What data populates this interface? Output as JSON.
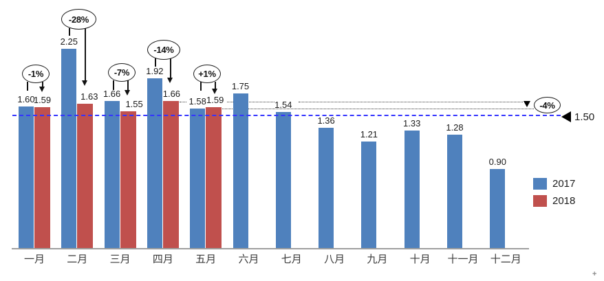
{
  "chart_data": {
    "type": "bar",
    "title": "",
    "categories": [
      "一月",
      "二月",
      "三月",
      "四月",
      "五月",
      "六月",
      "七月",
      "八月",
      "九月",
      "十月",
      "十一月",
      "十二月"
    ],
    "series": [
      {
        "name": "2017",
        "color": "#4F81BD",
        "values": [
          1.6,
          2.25,
          1.66,
          1.92,
          1.58,
          1.75,
          1.54,
          1.36,
          1.21,
          1.33,
          1.28,
          0.9
        ]
      },
      {
        "name": "2018",
        "color": "#C0504D",
        "values": [
          1.59,
          1.63,
          1.55,
          1.66,
          1.59,
          null,
          null,
          null,
          null,
          null,
          null,
          null
        ]
      }
    ],
    "ylim": [
      0,
      2.4
    ],
    "grid": false,
    "legend_position": "right",
    "value_labels_shown": true,
    "reference_line": {
      "value": 1.5,
      "label": "1.50",
      "color": "#3333FF",
      "style": "dashed"
    },
    "annotations": [
      {
        "category": "一月",
        "label": "-1%"
      },
      {
        "category": "二月",
        "label": "-28%"
      },
      {
        "category": "三月",
        "label": "-7%"
      },
      {
        "category": "四月",
        "label": "-14%"
      },
      {
        "category": "五月",
        "label": "+1%"
      }
    ],
    "callout": {
      "label": "-4%",
      "dotted_levels": [
        1.66,
        1.59
      ]
    }
  },
  "colors": {
    "bar_2017": "#4F81BD",
    "bar_2018": "#C0504D",
    "reference_line": "#3333FF",
    "axis": "#9E9E9E",
    "dotted_line": "#333333"
  },
  "misc": {
    "corner_mark": "+"
  }
}
